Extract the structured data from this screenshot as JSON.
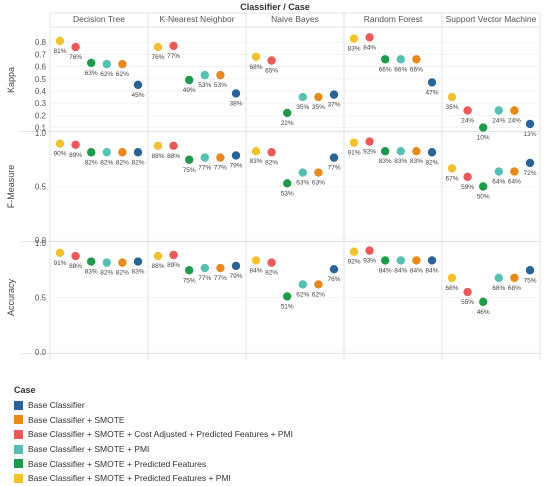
{
  "header": {
    "title": "Classifier / Case"
  },
  "colors": {
    "Base Classifier": "#2a6496",
    "Base Classifier + SMOTE": "#e8891d",
    "Base Classifier + SMOTE + Cost Adjusted + Predicted Features + PMI": "#eb5a5a",
    "Base Classifier + SMOTE +  PMI": "#58bfb3",
    "Base Classifier + SMOTE + Predicted Features": "#1d9a4a",
    "Base Classifier + SMOTE + Predicted Features + PMI": "#f2c12e"
  },
  "legend": {
    "title": "Case",
    "items": [
      "Base Classifier",
      "Base Classifier + SMOTE",
      "Base Classifier + SMOTE + Cost Adjusted + Predicted Features + PMI",
      "Base Classifier + SMOTE +  PMI",
      "Base Classifier + SMOTE + Predicted Features",
      "Base Classifier + SMOTE + Predicted Features + PMI"
    ]
  },
  "chart_data": {
    "type": "scatter",
    "title": "Classifier / Case",
    "classifiers": [
      "Decision Tree",
      "K-Nearest Neighbor",
      "Naive Bayes",
      "Random Forest",
      "Support Vector Machine"
    ],
    "case_order": [
      "Base Classifier + SMOTE + Predicted Features + PMI",
      "Base Classifier + SMOTE + Cost Adjusted + Predicted Features + PMI",
      "Base Classifier + SMOTE + Predicted Features",
      "Base Classifier + SMOTE +  PMI",
      "Base Classifier + SMOTE",
      "Base Classifier"
    ],
    "metrics": [
      {
        "name": "Kappa",
        "ylim": [
          0.08,
          0.9
        ],
        "ticks": [
          "0.1",
          "0.2",
          "0.3",
          "0.4",
          "0.5",
          "0.6",
          "0.7",
          "0.8"
        ],
        "values": {
          "Decision Tree": [
            0.81,
            0.76,
            0.63,
            0.62,
            0.62,
            0.45
          ],
          "K-Nearest Neighbor": [
            0.76,
            0.77,
            0.49,
            0.53,
            0.53,
            0.38
          ],
          "Naive Bayes": [
            0.68,
            0.65,
            0.22,
            0.35,
            0.35,
            0.37
          ],
          "Random Forest": [
            0.83,
            0.84,
            0.66,
            0.66,
            0.66,
            0.47
          ],
          "Support Vector Machine": [
            0.35,
            0.24,
            0.1,
            0.24,
            0.24,
            0.13
          ]
        }
      },
      {
        "name": "F-Measure",
        "ylim": [
          0.0,
          1.0
        ],
        "ticks": [
          "0.0",
          "0.5",
          "1.0"
        ],
        "values": {
          "Decision Tree": [
            0.9,
            0.89,
            0.82,
            0.82,
            0.82,
            0.82
          ],
          "K-Nearest Neighbor": [
            0.88,
            0.88,
            0.75,
            0.77,
            0.77,
            0.79
          ],
          "Naive Bayes": [
            0.83,
            0.82,
            0.53,
            0.63,
            0.63,
            0.77
          ],
          "Random Forest": [
            0.91,
            0.92,
            0.83,
            0.83,
            0.83,
            0.82
          ],
          "Support Vector Machine": [
            0.67,
            0.59,
            0.5,
            0.64,
            0.64,
            0.72
          ]
        },
        "labels": {
          "Decision Tree": [
            "90%",
            "89%",
            "82%",
            "82%",
            "82%",
            "82%"
          ],
          "K-Nearest Neighbor": [
            "88%",
            "88%",
            "75%",
            "77%",
            "77%",
            "79%"
          ],
          "Naive Bayes": [
            "83%",
            "82%",
            "53%",
            "63%",
            "63%",
            "77%"
          ],
          "Random Forest": [
            "91%",
            "92%",
            "83%",
            "83%",
            "83%",
            "82%"
          ],
          "Support Vector Machine": [
            "67%",
            "59%",
            "50%",
            "64%",
            "64%",
            "72%"
          ]
        }
      },
      {
        "name": "Accuracy",
        "ylim": [
          0.0,
          1.0
        ],
        "ticks": [
          "0.0",
          "0.5",
          "1.0"
        ],
        "values": {
          "Decision Tree": [
            0.91,
            0.88,
            0.83,
            0.82,
            0.82,
            0.83
          ],
          "K-Nearest Neighbor": [
            0.88,
            0.89,
            0.75,
            0.77,
            0.77,
            0.79
          ],
          "Naive Bayes": [
            0.84,
            0.82,
            0.51,
            0.62,
            0.62,
            0.76
          ],
          "Random Forest": [
            0.92,
            0.93,
            0.84,
            0.84,
            0.84,
            0.84
          ],
          "Support Vector Machine": [
            0.68,
            0.55,
            0.46,
            0.68,
            0.68,
            0.75
          ]
        }
      }
    ],
    "kappa_labels": {
      "Decision Tree": [
        "81%",
        "76%",
        "63%",
        "62%",
        "62%",
        "45%"
      ],
      "K-Nearest Neighbor": [
        "76%",
        "77%",
        "49%",
        "53%",
        "53%",
        "38%"
      ],
      "Naive Bayes": [
        "68%",
        "65%",
        "22%",
        "35%",
        "35%",
        "37%"
      ],
      "Random Forest": [
        "83%",
        "84%",
        "66%",
        "66%",
        "66%",
        "47%"
      ],
      "Support Vector Machine": [
        "35%",
        "24%",
        "10%",
        "24%",
        "24%",
        "13%"
      ]
    },
    "accuracy_labels": {
      "Decision Tree": [
        "91%",
        "88%",
        "83%",
        "82%",
        "82%",
        "83%"
      ],
      "K-Nearest Neighbor": [
        "88%",
        "89%",
        "75%",
        "77%",
        "77%",
        "79%"
      ],
      "Naive Bayes": [
        "84%",
        "82%",
        "51%",
        "62%",
        "62%",
        "76%"
      ],
      "Random Forest": [
        "92%",
        "93%",
        "84%",
        "84%",
        "84%",
        "84%"
      ],
      "Support Vector Machine": [
        "68%",
        "55%",
        "46%",
        "68%",
        "68%",
        "75%"
      ]
    }
  }
}
